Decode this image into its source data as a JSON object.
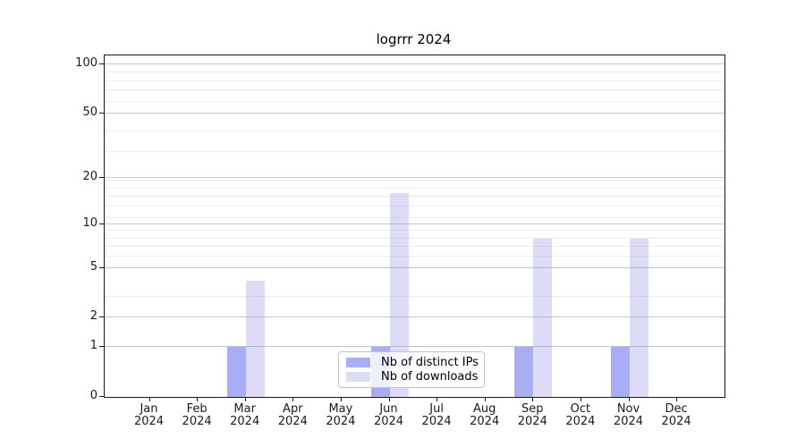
{
  "chart_data": {
    "type": "bar",
    "title": "logrrr 2024",
    "x_tick_months": [
      "Jan",
      "Feb",
      "Mar",
      "Apr",
      "May",
      "Jun",
      "Jul",
      "Aug",
      "Sep",
      "Oct",
      "Nov",
      "Dec"
    ],
    "x_tick_year": "2024",
    "series": [
      {
        "name": "Nb of distinct IPs",
        "solid_color": "#a9aef4",
        "fill_color": "rgba(112,120,237,0.6)",
        "values": [
          0,
          0,
          1,
          0,
          0,
          1,
          0,
          0,
          1,
          0,
          1,
          0
        ]
      },
      {
        "name": "Nb of downloads",
        "solid_color": "#dcdcf8",
        "fill_color": "rgba(155,155,235,0.35)",
        "values": [
          0,
          0,
          4,
          0,
          0,
          16,
          0,
          0,
          8,
          0,
          8,
          0
        ]
      }
    ],
    "yscale": "log1p",
    "yticks": [
      0,
      1,
      2,
      5,
      10,
      20,
      50,
      100
    ],
    "minor_grid_values": [
      3,
      6,
      7,
      8,
      9,
      11,
      13,
      15,
      17,
      19,
      29,
      39,
      59,
      69,
      79,
      89
    ],
    "ylim": [
      0,
      113
    ],
    "grid": true,
    "legend_position": "lower center (inside plot)",
    "colors": {
      "major_grid": "#c5c5c5",
      "minor_grid": "#ececec",
      "spine": "#1a1a1a",
      "legend_edge": "#c4c4c4"
    }
  }
}
